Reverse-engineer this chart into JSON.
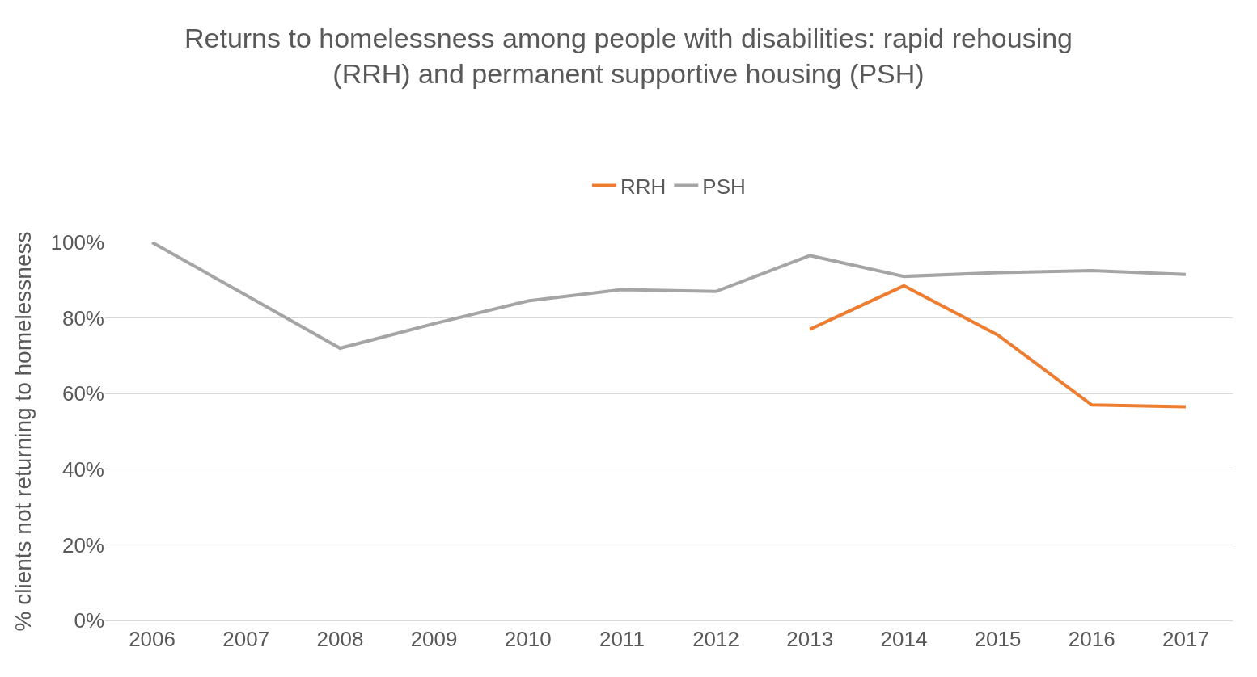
{
  "chart_data": {
    "type": "line",
    "title": "Returns to homelessness among people with disabilities: rapid rehousing\n(RRH) and permanent supportive housing (PSH)",
    "ylabel": "% clients not returning to homelessness",
    "categories": [
      "2006",
      "2007",
      "2008",
      "2009",
      "2010",
      "2011",
      "2012",
      "2013",
      "2014",
      "2015",
      "2016",
      "2017"
    ],
    "series": [
      {
        "name": "RRH",
        "color": "#ed7d31",
        "values": [
          null,
          null,
          null,
          null,
          null,
          null,
          null,
          77,
          88.5,
          75.5,
          57,
          56.5
        ]
      },
      {
        "name": "PSH",
        "color": "#a5a5a5",
        "values": [
          100,
          86,
          72,
          78.5,
          84.5,
          87.5,
          87,
          96.5,
          91,
          92,
          92.5,
          91.5
        ]
      }
    ],
    "ylim": [
      0,
      100
    ],
    "yticks": [
      {
        "value": 0,
        "label": "0%"
      },
      {
        "value": 20,
        "label": "20%"
      },
      {
        "value": 40,
        "label": "40%"
      },
      {
        "value": 60,
        "label": "60%"
      },
      {
        "value": 80,
        "label": "80%"
      },
      {
        "value": 100,
        "label": "100%"
      }
    ],
    "grid": "y",
    "legend": "top",
    "marker": "none",
    "line_style": "solid"
  }
}
